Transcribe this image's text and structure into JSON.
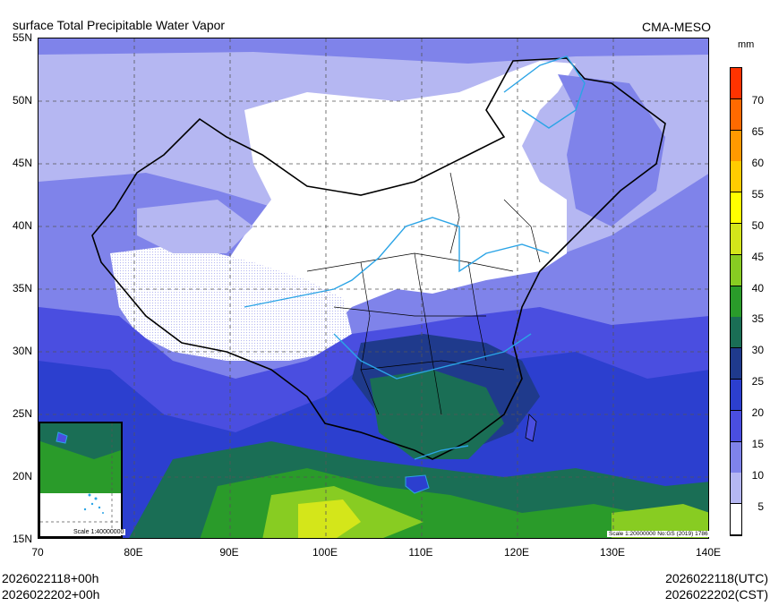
{
  "header": {
    "title": "surface Total Precipitable Water Vapor",
    "agency": "CMA-MESO"
  },
  "axes": {
    "y_labels": [
      "55N",
      "50N",
      "45N",
      "40N",
      "35N",
      "30N",
      "25N",
      "20N",
      "15N"
    ],
    "x_labels": [
      "70",
      "80E",
      "90E",
      "100E",
      "110E",
      "120E",
      "130E",
      "140E"
    ]
  },
  "colorbar": {
    "unit": "mm",
    "labels": [
      "70",
      "65",
      "60",
      "55",
      "50",
      "45",
      "40",
      "35",
      "30",
      "25",
      "20",
      "15",
      "10",
      "5"
    ],
    "colors": [
      "#ff3300",
      "#ff6a00",
      "#ff9900",
      "#ffcc00",
      "#ffff00",
      "#d4e61a",
      "#88cc22",
      "#2a9b2a",
      "#1a6e55",
      "#1f3a8c",
      "#2c3fcf",
      "#4a4ee0",
      "#7f83ea",
      "#b5b7f2",
      "#ffffff"
    ]
  },
  "scales": {
    "inset": "Scale 1:40000000",
    "main": "Scale 1:20000000 No:GS (2019) 1786"
  },
  "footer": {
    "init_local": "2026022118+00h",
    "valid_local": "2026022202+00h",
    "init_utc": "2026022118(UTC)",
    "valid_cst": "2026022202(CST)"
  }
}
